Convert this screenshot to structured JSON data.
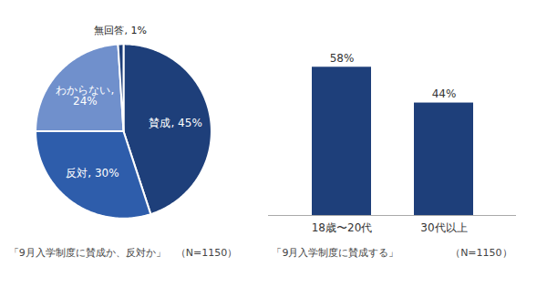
{
  "chart_data": [
    {
      "type": "pie",
      "title": "「9月入学制度に賛成か、反対か」　（N=1150）",
      "categories": [
        "賛成",
        "反対",
        "わからない",
        "無回答"
      ],
      "values": [
        45,
        30,
        24,
        1
      ],
      "colors": [
        "#1e3f7a",
        "#2e5dab",
        "#7090cc",
        "#1e3f7a"
      ],
      "data_labels": true,
      "value_labels": [
        "賛成, 45%",
        "反対, 30%",
        "わからない,\n24%",
        "無回答, 1%"
      ]
    },
    {
      "type": "bar",
      "title": "「9月入学制度に賛成する」",
      "annotations": [
        "（N=1150）"
      ],
      "categories": [
        "18歳〜20代",
        "30代以上"
      ],
      "values": [
        58,
        44
      ],
      "color": "#1e3f7a",
      "ylim": [
        0,
        72
      ],
      "tick_labels": "x",
      "data_labels": true,
      "value_labels": [
        "58%",
        "44%"
      ]
    }
  ]
}
